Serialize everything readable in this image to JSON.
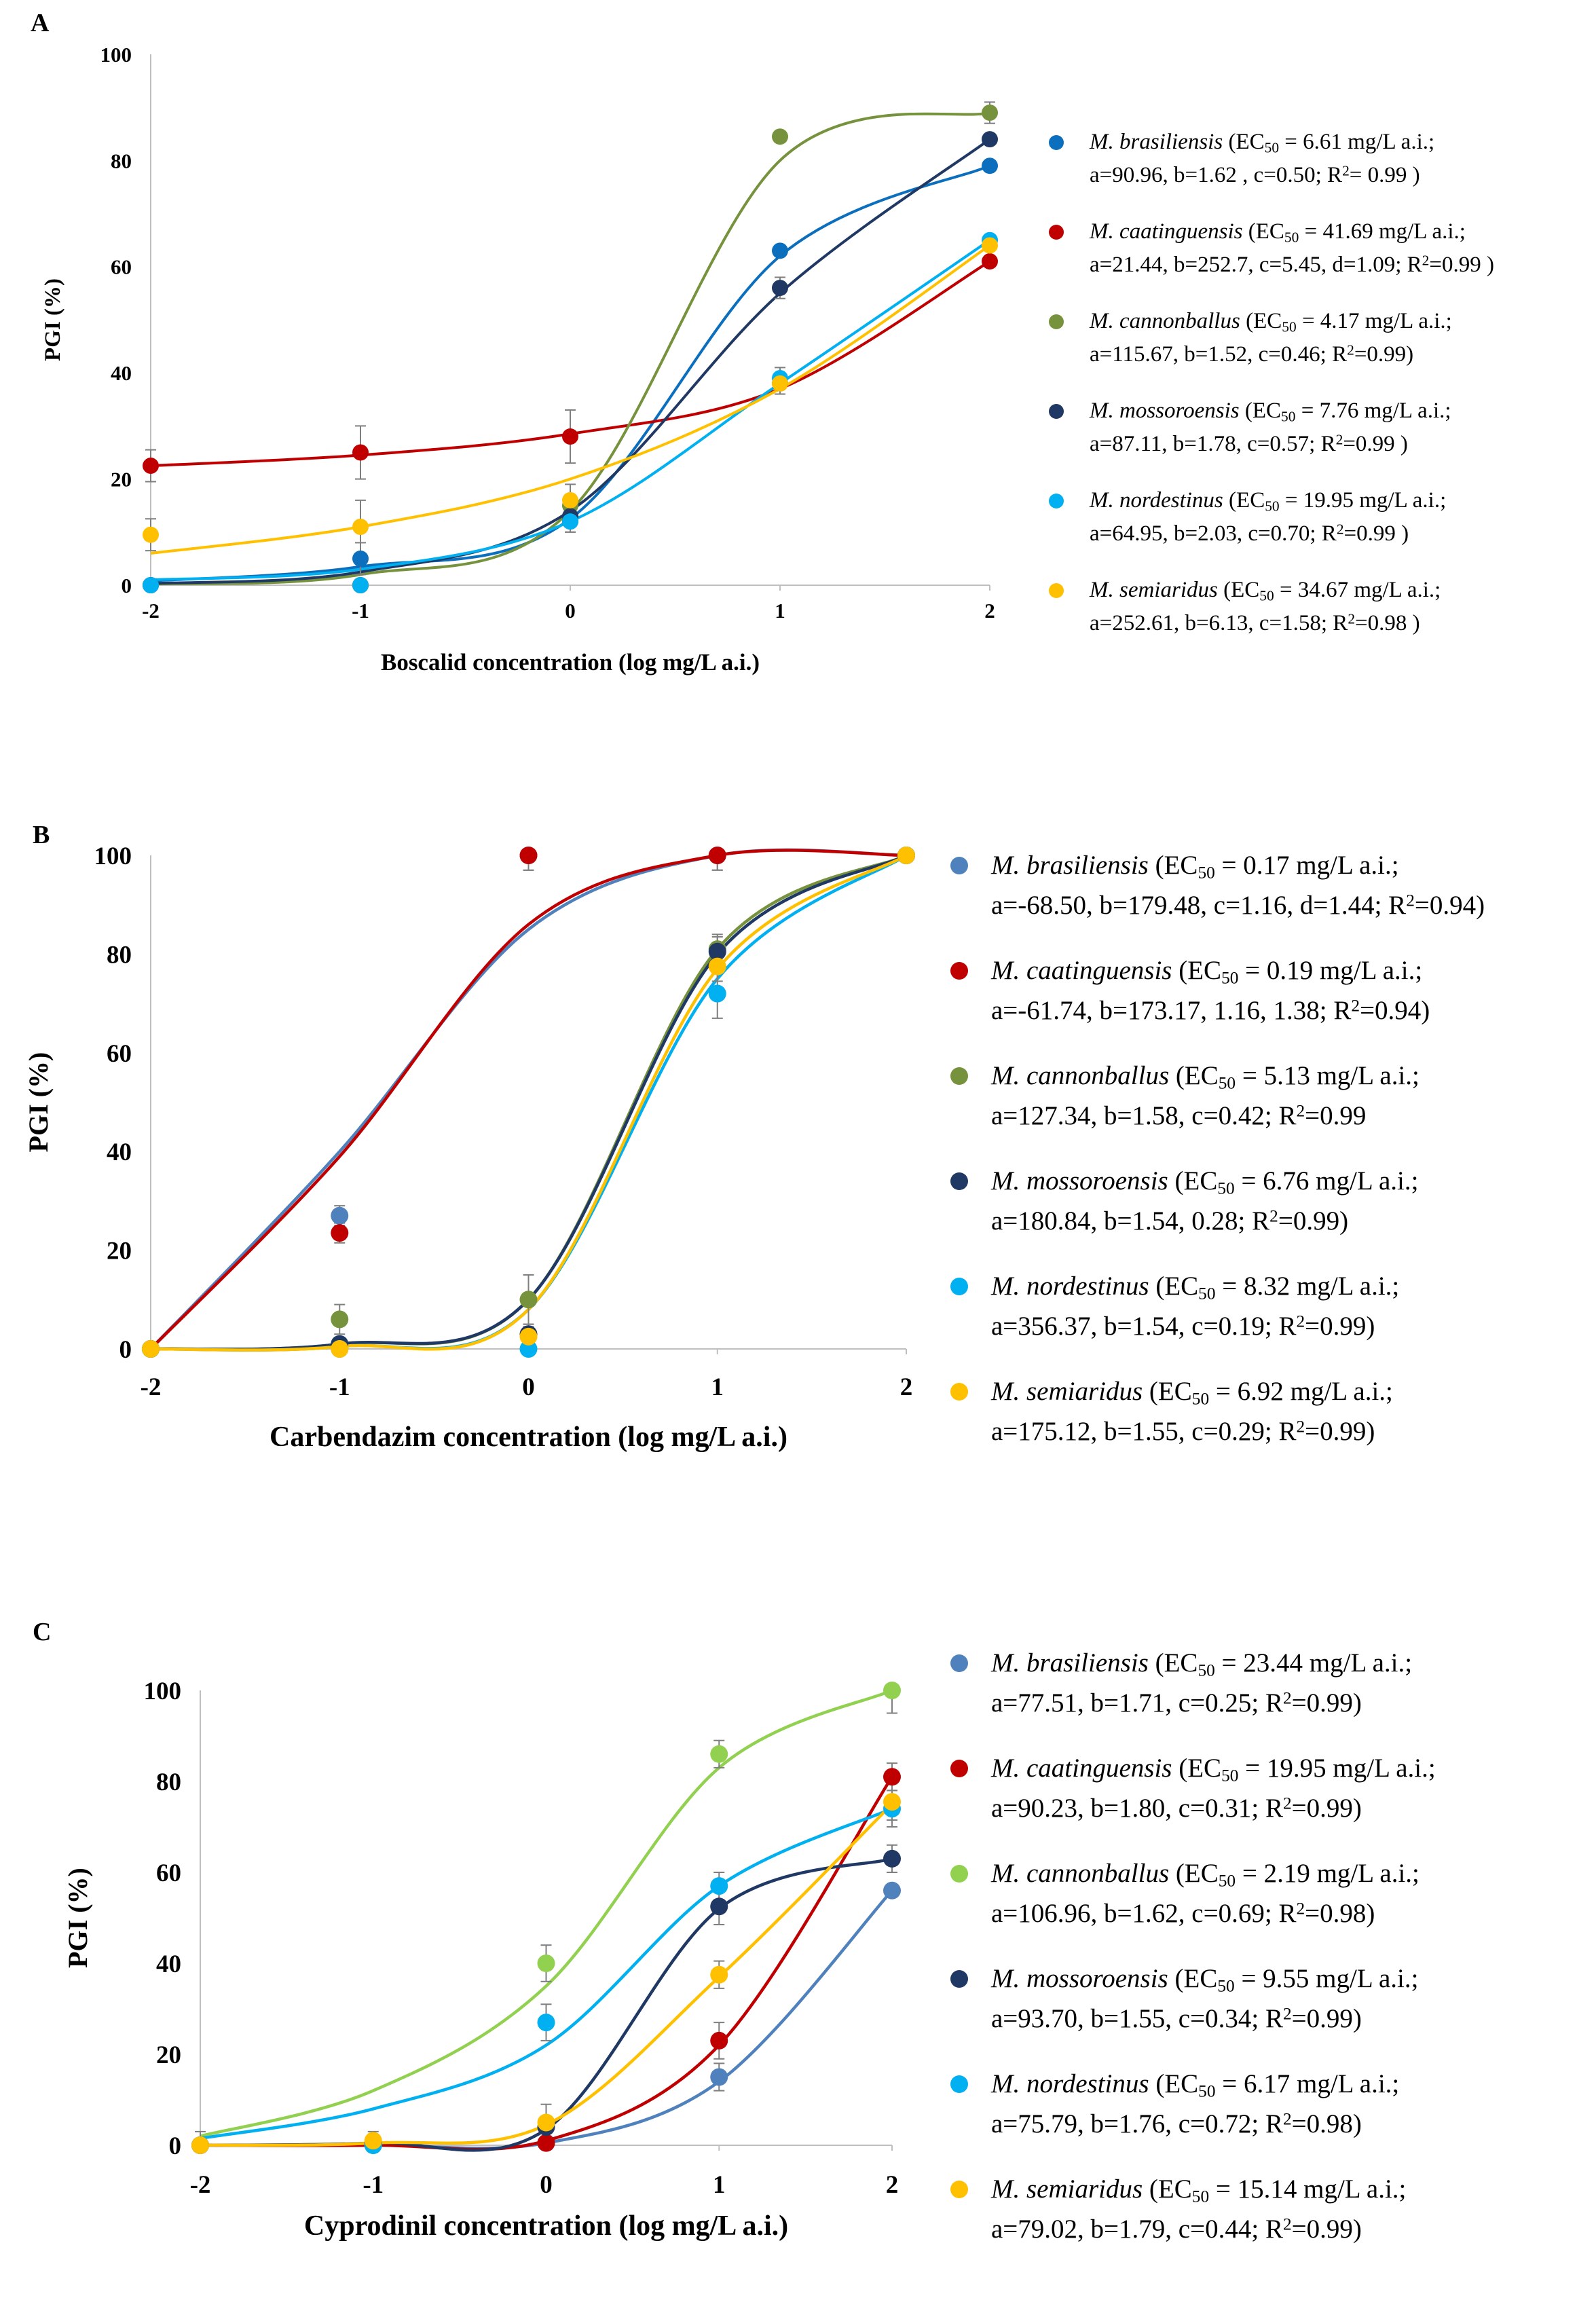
{
  "chart_data": [
    {
      "panel": "A",
      "type": "scatter",
      "title": "",
      "xlabel": "Boscalid concentration (log mg/L a.i.)",
      "ylabel": "PGI (%)",
      "xlim": [
        -2,
        2
      ],
      "ylim": [
        0,
        100
      ],
      "xticks": [
        "-2",
        "-1",
        "0",
        "1",
        "2"
      ],
      "yticks": [
        "0",
        "20",
        "40",
        "60",
        "80",
        "100"
      ],
      "x": [
        -2,
        -1,
        0,
        1,
        2
      ],
      "series": [
        {
          "name": "M. brasiliensis",
          "color": "#0b6fbd",
          "values": [
            0,
            5,
            12,
            63,
            79
          ],
          "errors": [
            1,
            3,
            2,
            1,
            1
          ],
          "fit": [
            0.8,
            3.5,
            12.5,
            62,
            79
          ],
          "species": "M. brasiliensis",
          "line1": " (EC50 = 6.61 mg/L a.i.;",
          "line2": "a=90.96, b=1.62 , c=0.50; R2= 0.99 )"
        },
        {
          "name": "M. caatinguensis",
          "color": "#c00000",
          "values": [
            22.5,
            25,
            28,
            38,
            61
          ],
          "errors": [
            3,
            5,
            5,
            2,
            1
          ],
          "fit": [
            22.5,
            24.5,
            28.5,
            37,
            61
          ],
          "species": "M. caatinguensis",
          "line1": " (EC50 = 41.69 mg/L a.i.;",
          "line2": "a=21.44, b=252.7, c=5.45, d=1.09; R2=0.99 )"
        },
        {
          "name": "M. cannonballus",
          "color": "#76923c",
          "values": [
            0,
            0,
            15,
            84.5,
            89
          ],
          "errors": [
            1,
            1,
            2,
            1,
            2
          ],
          "fit": [
            0.2,
            2,
            14,
            80,
            89
          ],
          "species": "M. cannonballus",
          "line1": " (EC50 = 4.17 mg/L a.i.;",
          "line2": "a=115.67, b=1.52, c=0.46; R2=0.99)"
        },
        {
          "name": "M. mossoroensis",
          "color": "#1f3864",
          "values": [
            0,
            0,
            13,
            56,
            84
          ],
          "errors": [
            1,
            1,
            2,
            2,
            1
          ],
          "fit": [
            0.3,
            2.5,
            14,
            55,
            84
          ],
          "species": "M. mossoroensis",
          "line1": " (EC50 = 7.76 mg/L a.i.;",
          "line2": "a=87.11, b=1.78, c=0.57;  R2=0.99 )"
        },
        {
          "name": "M. nordestinus",
          "color": "#00b0f0",
          "values": [
            0,
            0,
            12,
            39,
            65
          ],
          "errors": [
            1,
            1,
            2,
            2,
            1
          ],
          "fit": [
            1,
            3,
            12,
            38,
            65
          ],
          "species": "M. nordestinus",
          "line1": " (EC50 = 19.95 mg/L a.i.;",
          "line2": "a=64.95, b=2.03, c=0.70; R2=0.99 )"
        },
        {
          "name": "M. semiaridus",
          "color": "#ffc000",
          "values": [
            9.5,
            11,
            16,
            38,
            64
          ],
          "errors": [
            3,
            5,
            3,
            2,
            1
          ],
          "fit": [
            6,
            11,
            20,
            37,
            64
          ],
          "species": "M. semiaridus",
          "line1": " (EC50 = 34.67 mg/L a.i.;",
          "line2": "a=252.61, b=6.13, c=1.58; R2=0.98 )"
        }
      ]
    },
    {
      "panel": "B",
      "type": "scatter",
      "title": "",
      "xlabel": "Carbendazim concentration (log mg/L a.i.)",
      "ylabel": "PGI (%)",
      "xlim": [
        -2,
        2
      ],
      "ylim": [
        0,
        100
      ],
      "xticks": [
        "-2",
        "-1",
        "0",
        "1",
        "2"
      ],
      "yticks": [
        "0",
        "20",
        "40",
        "60",
        "80",
        "100"
      ],
      "x": [
        -2,
        -1,
        0,
        1,
        2
      ],
      "series": [
        {
          "name": "M. brasiliensis",
          "color": "#4f81bd",
          "values": [
            0,
            27,
            100,
            100,
            100
          ],
          "errors": [
            1,
            2,
            3,
            3,
            1
          ],
          "fit": [
            0,
            40,
            85,
            100,
            100
          ],
          "species": "M. brasiliensis",
          "line1": " (EC50 = 0.17 mg/L a.i.;",
          "line2": "a=-68.50, b=179.48, c=1.16, d=1.44; R2=0.94)"
        },
        {
          "name": "M. caatinguensis",
          "color": "#c00000",
          "values": [
            0,
            23.5,
            100,
            100,
            100
          ],
          "errors": [
            1,
            2,
            3,
            3,
            1
          ],
          "fit": [
            0,
            39,
            86,
            100,
            100
          ],
          "species": "M. caatinguensis",
          "line1": "  (EC50 = 0.19 mg/L a.i.;",
          "line2": "a=-61.74, b=173.17, 1.16, 1.38; R2=0.94)"
        },
        {
          "name": "M. cannonballus",
          "color": "#76923c",
          "values": [
            0,
            6,
            10,
            81,
            100
          ],
          "errors": [
            1,
            3,
            5,
            3,
            1
          ],
          "fit": [
            0,
            1,
            10,
            81,
            100
          ],
          "species": "M. cannonballus",
          "line1": "  (EC50 = 5.13 mg/L a.i.;",
          "line2": "a=127.34, b=1.58, c=0.42; R2=0.99"
        },
        {
          "name": "M. mossoroensis",
          "color": "#1f3864",
          "values": [
            0,
            1,
            3,
            80.5,
            100
          ],
          "errors": [
            1,
            1,
            2,
            3,
            1
          ],
          "fit": [
            0,
            1,
            10,
            80,
            100
          ],
          "species": "M. mossoroensis",
          "line1": "  (EC50 = 6.76 mg/L a.i.;",
          "line2": "a=180.84, b=1.54, 0.28; R2=0.99)"
        },
        {
          "name": "M. nordestinus",
          "color": "#00b0f0",
          "values": [
            0,
            0,
            0,
            72,
            100
          ],
          "errors": [
            1,
            1,
            1,
            5,
            1
          ],
          "fit": [
            0,
            0.5,
            8,
            75,
            100
          ],
          "species": "M. nordestinus",
          "line1": "  (EC50 = 8.32 mg/L a.i.;",
          "line2": "a=356.37, b=1.54, c=0.19; R2=0.99)"
        },
        {
          "name": "M. semiaridus",
          "color": "#ffc000",
          "values": [
            0,
            0,
            2.5,
            77.5,
            100
          ],
          "errors": [
            1,
            1,
            2,
            3,
            1
          ],
          "fit": [
            0,
            0.5,
            8,
            77,
            100
          ],
          "species": "M. semiaridus",
          "line1": "  (EC50 = 6.92 mg/L a.i.;",
          "line2": "a=175.12, b=1.55, c=0.29; R2=0.99)"
        }
      ]
    },
    {
      "panel": "C",
      "type": "scatter",
      "title": "",
      "xlabel": "Cyprodinil concentration (log mg/L a.i.)",
      "ylabel": "PGI (%)",
      "xlim": [
        -2,
        2
      ],
      "ylim": [
        0,
        100
      ],
      "xticks": [
        "-2",
        "-1",
        "0",
        "1",
        "2"
      ],
      "yticks": [
        "0",
        "20",
        "40",
        "60",
        "80",
        "100"
      ],
      "x": [
        -2,
        -1,
        0,
        1,
        2
      ],
      "series": [
        {
          "name": "M. brasiliensis",
          "color": "#4f81bd",
          "values": [
            0,
            0.5,
            0.5,
            15,
            56
          ],
          "errors": [
            1,
            1,
            1,
            3,
            1
          ],
          "fit": [
            0,
            0,
            0.5,
            14,
            56
          ],
          "species": "M. brasiliensis",
          "line1": " (EC50 = 23.44 mg/L a.i.;",
          "line2": "a=77.51, b=1.71, c=0.25; R2=0.99)"
        },
        {
          "name": "M. caatinguensis",
          "color": "#c00000",
          "values": [
            0,
            0.5,
            0.5,
            23,
            81
          ],
          "errors": [
            1,
            1,
            1,
            4,
            3
          ],
          "fit": [
            0,
            0,
            1,
            22,
            81
          ],
          "species": "M. caatinguensis",
          "line1": " (EC50 = 19.95 mg/L a.i.;",
          "line2": "a=90.23, b=1.80, c=0.31; R2=0.99)"
        },
        {
          "name": "M. cannonballus",
          "color": "#92d050",
          "values": [
            0,
            0,
            40,
            86,
            100
          ],
          "errors": [
            3,
            1,
            4,
            3,
            5
          ],
          "fit": [
            2,
            12,
            35,
            83,
            100
          ],
          "species": "M. cannonballus",
          "line1": " (EC50 = 2.19 mg/L a.i.;",
          "line2": "a=106.96, b=1.62, c=0.69; R2=0.98)"
        },
        {
          "name": "M. mossoroensis",
          "color": "#1f3864",
          "values": [
            0,
            0.5,
            4,
            52.5,
            63
          ],
          "errors": [
            1,
            1,
            2,
            4,
            3
          ],
          "fit": [
            0,
            0.5,
            3.5,
            52,
            63
          ],
          "species": "M. mossoroensis",
          "line1": " (EC50 = 9.55 mg/L a.i.;",
          "line2": "a=93.70, b=1.55, c=0.34; R2=0.99)"
        },
        {
          "name": "M. nordestinus",
          "color": "#00b0f0",
          "values": [
            0,
            0,
            27,
            57,
            74
          ],
          "errors": [
            1,
            1,
            4,
            3,
            4
          ],
          "fit": [
            1.5,
            8,
            22,
            57,
            74
          ],
          "species": "M. nordestinus",
          "line1": " (EC50 = 6.17 mg/L a.i.;",
          "line2": "a=75.79, b=1.76, c=0.72; R2=0.98)"
        },
        {
          "name": "M. semiaridus",
          "color": "#ffc000",
          "values": [
            0,
            1,
            5,
            37.5,
            75.5
          ],
          "errors": [
            1,
            2,
            4,
            3,
            4
          ],
          "fit": [
            0,
            0.5,
            4.5,
            37,
            75
          ],
          "species": "M. semiaridus",
          "line1": "  (EC50 = 15.14 mg/L a.i.;",
          "line2": "a=79.02, b=1.79, c=0.44; R2=0.99)"
        }
      ]
    }
  ],
  "panels": [
    {
      "label": "A"
    },
    {
      "label": "B"
    },
    {
      "label": "C"
    }
  ]
}
